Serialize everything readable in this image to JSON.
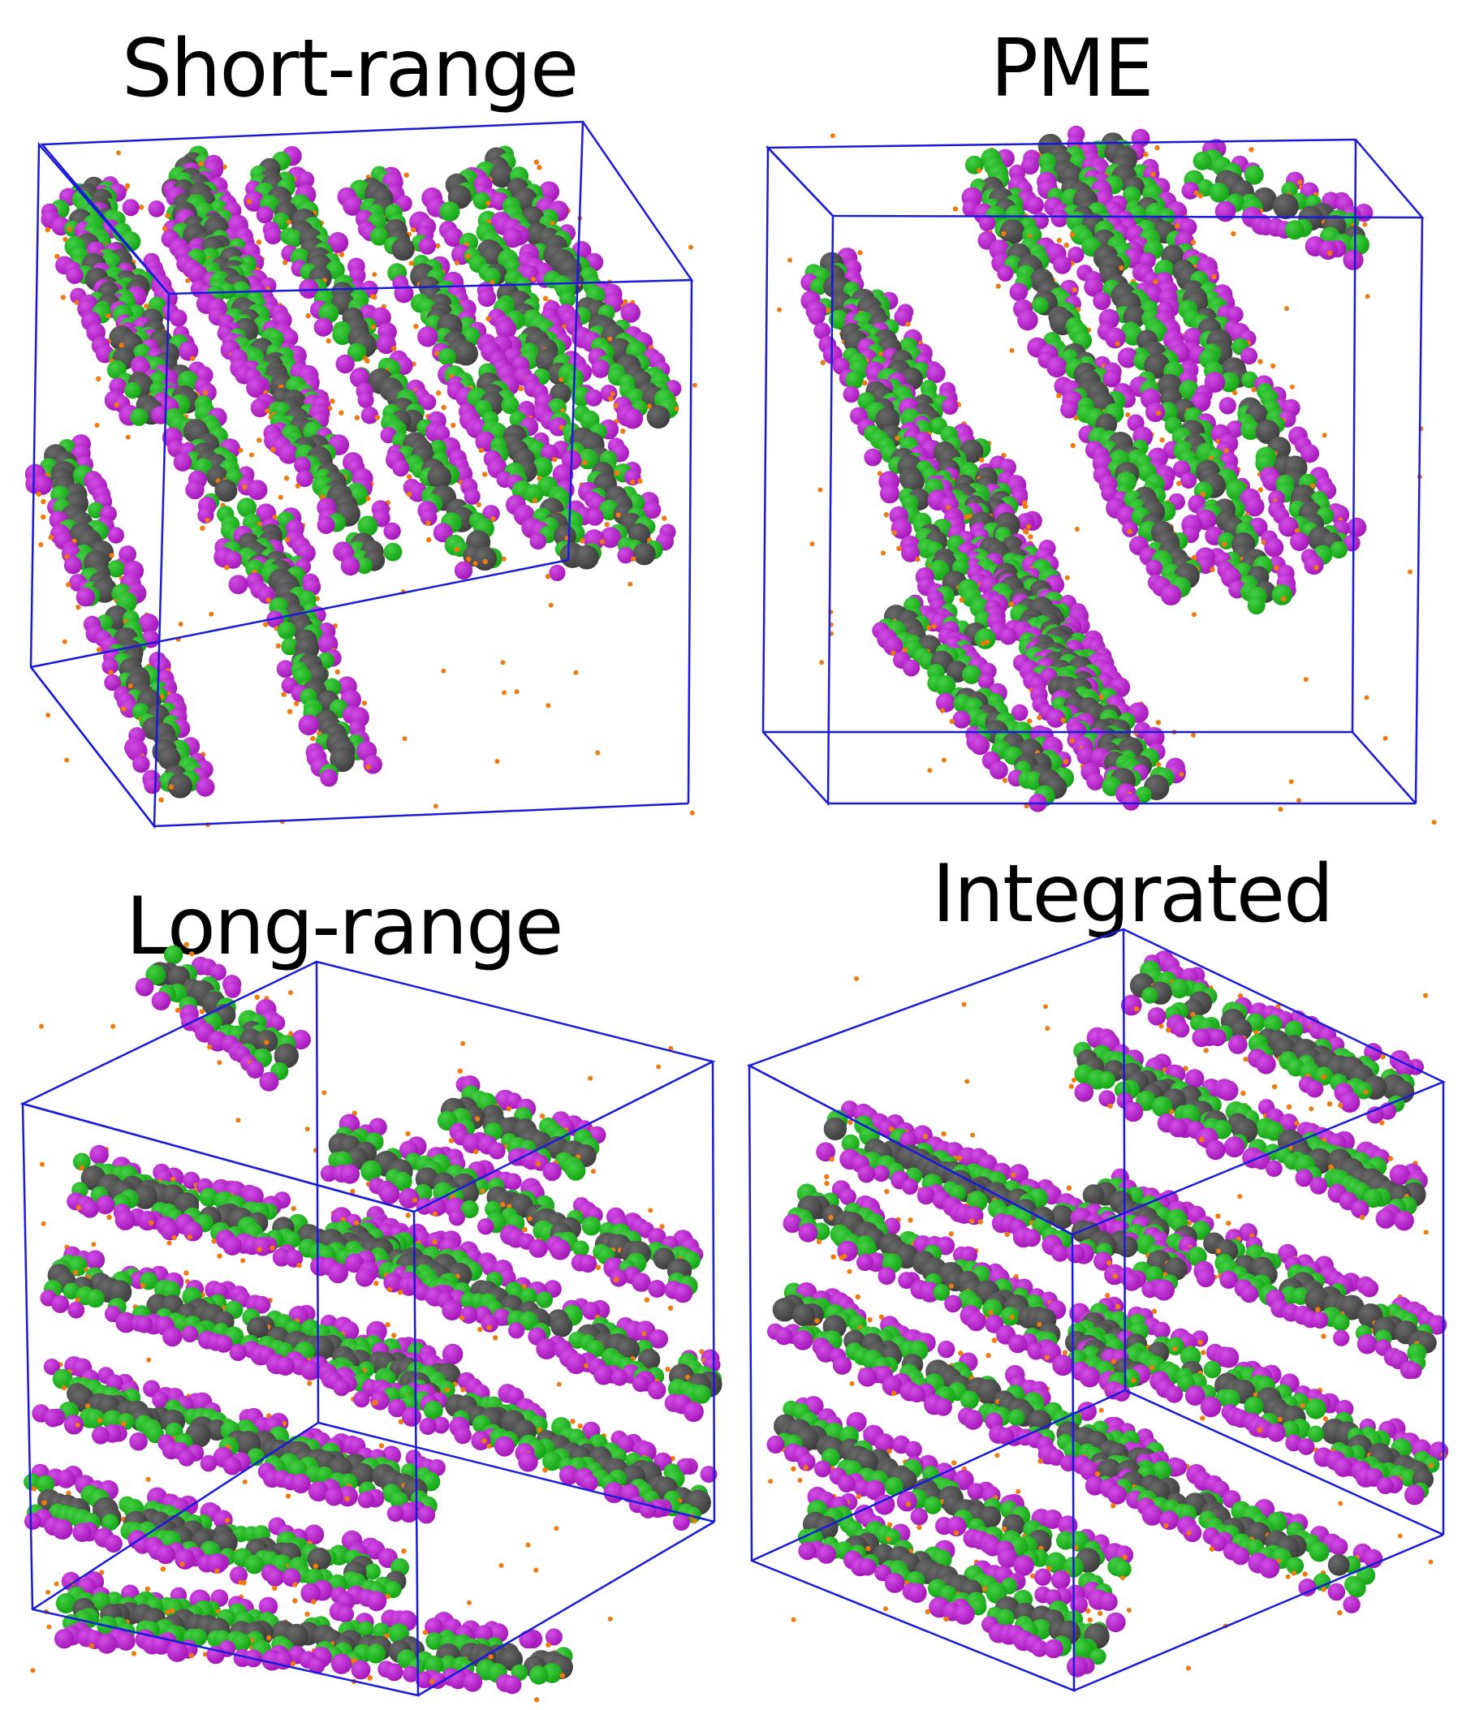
{
  "figure": {
    "panels": [
      {
        "id": "short-range",
        "label": "Short-range",
        "seed": 11,
        "lamellae": "diagonal-steep"
      },
      {
        "id": "pme",
        "label": "PME",
        "seed": 23,
        "lamellae": "diagonal-steep-curved"
      },
      {
        "id": "long-range",
        "label": "Long-range",
        "seed": 37,
        "lamellae": "diagonal-shallow"
      },
      {
        "id": "integrated",
        "label": "Integrated",
        "seed": 51,
        "lamellae": "diagonal-shallow"
      }
    ],
    "colors": {
      "box_edge": "#1a1adb",
      "bead_dark": "#3a3a3a",
      "bead_green": "#0fa00f",
      "bead_purple": "#a012b4",
      "bead_small": "#ee7a10",
      "background": "#ffffff"
    }
  }
}
